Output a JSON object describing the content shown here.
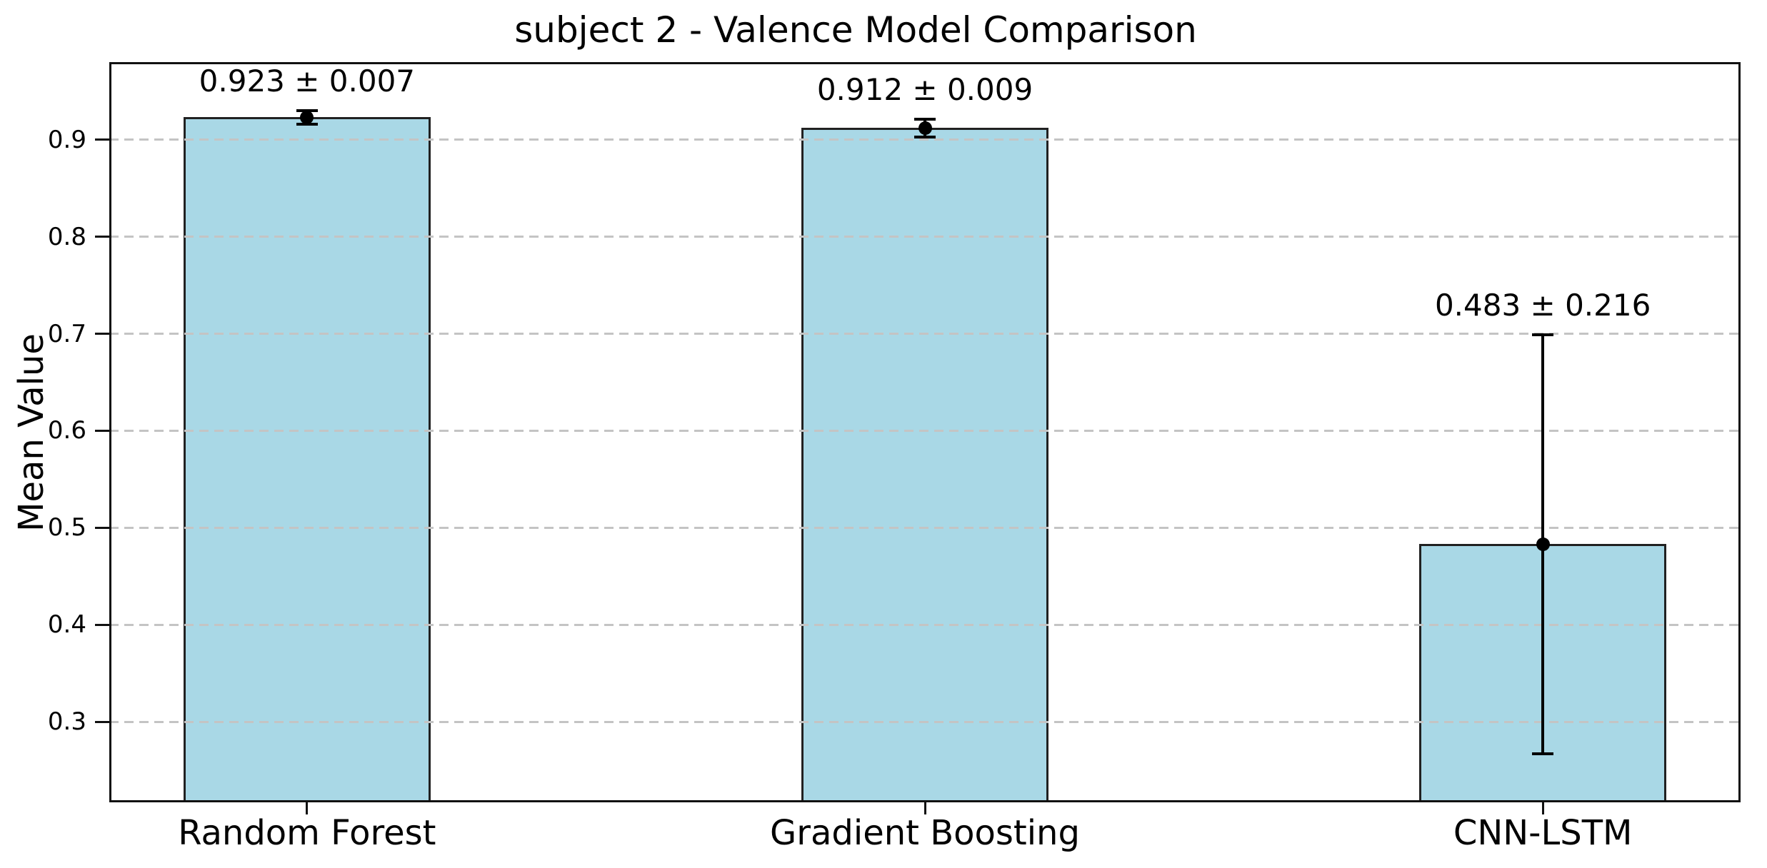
{
  "chart_data": {
    "type": "bar",
    "title": "subject 2 - Valence Model Comparison",
    "xlabel": "",
    "ylabel": "Mean Value",
    "categories": [
      "Random Forest",
      "Gradient Boosting",
      "CNN-LSTM"
    ],
    "values": [
      0.923,
      0.912,
      0.483
    ],
    "errors": [
      0.007,
      0.009,
      0.216
    ],
    "annotations": [
      "0.923 ± 0.007",
      "0.912 ± 0.009",
      "0.483 ± 0.216"
    ],
    "yticks": [
      0.3,
      0.4,
      0.5,
      0.6,
      0.7,
      0.8,
      0.9
    ],
    "ytick_labels": [
      "0.3",
      "0.4",
      "0.5",
      "0.6",
      "0.7",
      "0.8",
      "0.9"
    ],
    "ylim": [
      0.217,
      0.98
    ],
    "xlim": [
      -0.32,
      2.32
    ],
    "bar_width": 0.4,
    "grid": "horizontal-dashed-above-bars",
    "legend": "none",
    "colors": {
      "bar_fill": "#a9d8e6",
      "bar_edge": "#212121",
      "error_bar": "#000000",
      "grid": "#c4c4c4",
      "spine": "#111111",
      "text": "#000000",
      "background": "#ffffff"
    }
  }
}
